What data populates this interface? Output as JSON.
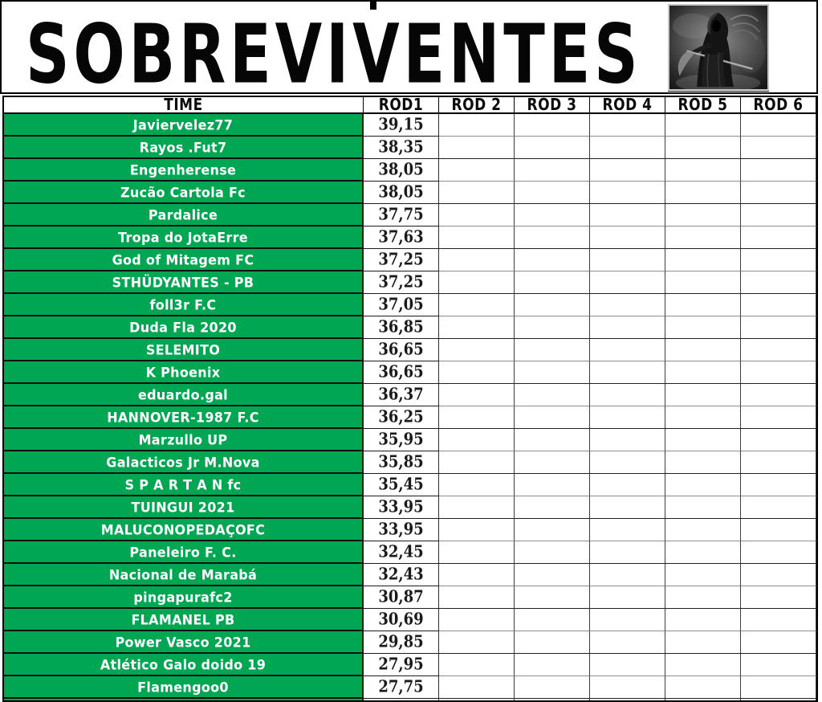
{
  "title": "SOBREVIVENTES",
  "header_image": "grim-reaper",
  "colors": {
    "row_green": "#00a651",
    "team_text": "#ffffff",
    "grid_black": "#111111"
  },
  "table": {
    "columns": [
      "TIME",
      "ROD1",
      "ROD 2",
      "ROD 3",
      "ROD 4",
      "ROD 5",
      "ROD 6"
    ],
    "rows": [
      {
        "team": "Javiervelez77",
        "rod1": "39,15"
      },
      {
        "team": "Rayos .Fut7",
        "rod1": "38,35"
      },
      {
        "team": "Engenherense",
        "rod1": "38,05"
      },
      {
        "team": "Zucão Cartola Fc",
        "rod1": "38,05"
      },
      {
        "team": "Pardalice",
        "rod1": "37,75"
      },
      {
        "team": "Tropa do JotaErre",
        "rod1": "37,63"
      },
      {
        "team": "God of Mitagem FC",
        "rod1": "37,25"
      },
      {
        "team": "STHÜDYANTES - PB",
        "rod1": "37,25"
      },
      {
        "team": "foll3r F.C",
        "rod1": "37,05"
      },
      {
        "team": "Duda Fla 2020",
        "rod1": "36,85"
      },
      {
        "team": "SELEMITO",
        "rod1": "36,65"
      },
      {
        "team": "K Phoenix",
        "rod1": "36,65"
      },
      {
        "team": "eduardo.gal",
        "rod1": "36,37"
      },
      {
        "team": "HANNOVER-1987 F.C",
        "rod1": "36,25"
      },
      {
        "team": "Marzullo UP",
        "rod1": "35,95"
      },
      {
        "team": "Galacticos Jr M.Nova",
        "rod1": "35,85"
      },
      {
        "team": "S P A R T A N fc",
        "rod1": "35,45"
      },
      {
        "team": "TUINGUI 2021",
        "rod1": "33,95"
      },
      {
        "team": "MALUCONOPEDAÇOFC",
        "rod1": "33,95"
      },
      {
        "team": "Paneleiro F. C.",
        "rod1": "32,45"
      },
      {
        "team": "Nacional de Marabá",
        "rod1": "32,43"
      },
      {
        "team": "pingapurafc2",
        "rod1": "30,87"
      },
      {
        "team": "FLAMANEL PB",
        "rod1": "30,69"
      },
      {
        "team": "Power Vasco 2021",
        "rod1": "29,85"
      },
      {
        "team": "Atlético Galo doido 19",
        "rod1": "27,95"
      },
      {
        "team": "Flamengoo0",
        "rod1": "27,75"
      }
    ]
  }
}
